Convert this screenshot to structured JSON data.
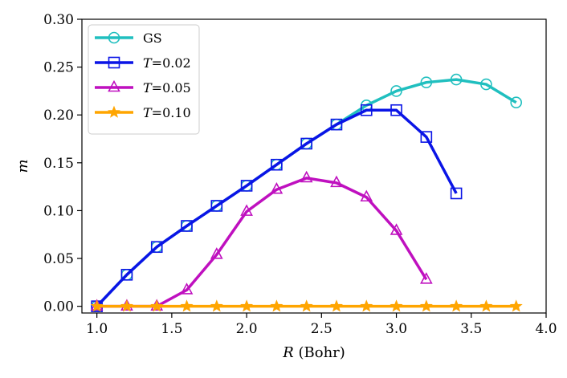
{
  "chart_data": {
    "type": "line",
    "xlabel_italic": "R",
    "xlabel_rest": " (Bohr)",
    "ylabel": "m",
    "xlim": [
      0.9,
      4.0
    ],
    "ylim": [
      -0.007,
      0.3
    ],
    "xticks": [
      1.0,
      1.5,
      2.0,
      2.5,
      3.0,
      3.5,
      4.0
    ],
    "xtick_labels": [
      "1.0",
      "1.5",
      "2.0",
      "2.5",
      "3.0",
      "3.5",
      "4.0"
    ],
    "yticks": [
      0.0,
      0.05,
      0.1,
      0.15,
      0.2,
      0.25,
      0.3
    ],
    "ytick_labels": [
      "0.00",
      "0.05",
      "0.10",
      "0.15",
      "0.20",
      "0.25",
      "0.30"
    ],
    "legend_position": "top-left",
    "series": [
      {
        "name": "GS",
        "label_italic": "",
        "label_rest": "GS",
        "color": "#20bfbf",
        "marker": "circle",
        "x": [
          1.0,
          1.2,
          1.4,
          1.6,
          1.8,
          2.0,
          2.2,
          2.4,
          2.6,
          2.8,
          3.0,
          3.2,
          3.4,
          3.6,
          3.8
        ],
        "y": [
          0.0,
          0.033,
          0.062,
          0.084,
          0.105,
          0.126,
          0.148,
          0.17,
          0.19,
          0.21,
          0.225,
          0.234,
          0.237,
          0.232,
          0.213
        ]
      },
      {
        "name": "T=0.02",
        "label_italic": "T",
        "label_rest": "=0.02",
        "color": "#0a14e6",
        "marker": "square",
        "x": [
          1.0,
          1.2,
          1.4,
          1.6,
          1.8,
          2.0,
          2.2,
          2.4,
          2.6,
          2.8,
          3.0,
          3.2,
          3.4
        ],
        "y": [
          0.0,
          0.033,
          0.062,
          0.084,
          0.105,
          0.126,
          0.148,
          0.17,
          0.19,
          0.205,
          0.205,
          0.177,
          0.118
        ]
      },
      {
        "name": "T=0.05",
        "label_italic": "T",
        "label_rest": "=0.05",
        "color": "#bf10bf",
        "marker": "triangle",
        "x": [
          1.0,
          1.2,
          1.4,
          1.6,
          1.8,
          2.0,
          2.2,
          2.4,
          2.6,
          2.8,
          3.0,
          3.2
        ],
        "y": [
          0.0,
          0.0,
          0.0,
          0.017,
          0.054,
          0.099,
          0.122,
          0.134,
          0.129,
          0.114,
          0.079,
          0.028
        ]
      },
      {
        "name": "T=0.10",
        "label_italic": "T",
        "label_rest": "=0.10",
        "color": "#ffa500",
        "marker": "star",
        "x": [
          1.0,
          1.2,
          1.4,
          1.6,
          1.8,
          2.0,
          2.2,
          2.4,
          2.6,
          2.8,
          3.0,
          3.2,
          3.4,
          3.6,
          3.8
        ],
        "y": [
          0.0,
          0.0,
          0.0,
          0.0,
          0.0,
          0.0,
          0.0,
          0.0,
          0.0,
          0.0,
          0.0,
          0.0,
          0.0,
          0.0,
          0.0
        ]
      }
    ]
  }
}
